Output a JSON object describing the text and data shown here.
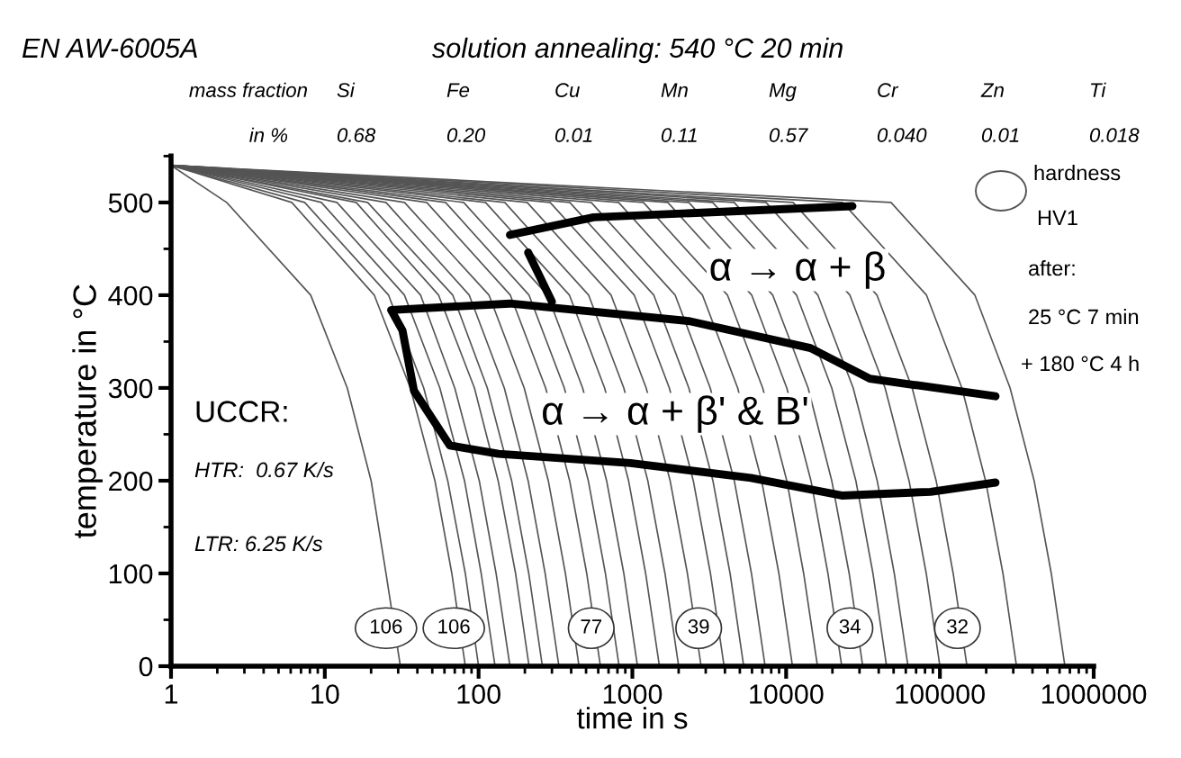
{
  "chart_data": {
    "type": "line",
    "title": "EN AW-6005A",
    "subtitle": "solution annealing: 540 °C 20 min",
    "xlabel": "time in s",
    "ylabel": "temperature in °C",
    "log": "x",
    "xlim": [
      1,
      1000000
    ],
    "xticks": [
      1,
      10,
      100,
      1000,
      10000,
      100000,
      1000000
    ],
    "ylim": [
      0,
      550
    ],
    "yticks": [
      0,
      100,
      200,
      300,
      400,
      500
    ],
    "grid": false,
    "legend": false,
    "series": [
      {
        "color": "#555555",
        "x": [
          1,
          2.3,
          8.1,
          14,
          20,
          25,
          31
        ],
        "values": [
          540,
          500,
          400,
          300,
          200,
          100,
          0
        ]
      },
      {
        "type": "line",
        "color": "#555555",
        "x": [
          1,
          6.1,
          21,
          36,
          52,
          67,
          82
        ],
        "values": [
          540,
          500,
          400,
          300,
          200,
          100,
          0
        ]
      },
      {
        "type": "line",
        "color": "#555555",
        "x": [
          1,
          7.4,
          26,
          44,
          63,
          82,
          100
        ],
        "values": [
          540,
          500,
          400,
          300,
          200,
          100,
          0
        ]
      },
      {
        "type": "line",
        "color": "#555555",
        "x": [
          1,
          9.5,
          33,
          56,
          81,
          104,
          128
        ],
        "values": [
          540,
          500,
          400,
          300,
          200,
          100,
          0
        ]
      },
      {
        "type": "line",
        "color": "#555555",
        "x": [
          1,
          12,
          42,
          70,
          101,
          130,
          160
        ],
        "values": [
          540,
          500,
          400,
          300,
          200,
          100,
          0
        ]
      },
      {
        "type": "line",
        "color": "#555555",
        "x": [
          1,
          16,
          55,
          94,
          134,
          174,
          213
        ],
        "values": [
          540,
          500,
          400,
          300,
          200,
          100,
          0
        ]
      },
      {
        "type": "line",
        "color": "#555555",
        "x": [
          1,
          19,
          68,
          114,
          164,
          212,
          260
        ],
        "values": [
          540,
          500,
          400,
          300,
          200,
          100,
          0
        ]
      },
      {
        "type": "line",
        "color": "#555555",
        "x": [
          1,
          25,
          87,
          147,
          210,
          271,
          333
        ],
        "values": [
          540,
          500,
          400,
          300,
          200,
          100,
          0
        ]
      },
      {
        "type": "line",
        "color": "#555555",
        "x": [
          1,
          33,
          117,
          198,
          284,
          367,
          450
        ],
        "values": [
          540,
          500,
          400,
          300,
          200,
          100,
          0
        ]
      },
      {
        "type": "line",
        "color": "#555555",
        "x": [
          1,
          46,
          161,
          273,
          391,
          505,
          620
        ],
        "values": [
          540,
          500,
          400,
          300,
          200,
          100,
          0
        ]
      },
      {
        "type": "line",
        "color": "#555555",
        "x": [
          1,
          61,
          213,
          361,
          517,
          668,
          820
        ],
        "values": [
          540,
          500,
          400,
          300,
          200,
          100,
          0
        ]
      },
      {
        "type": "line",
        "color": "#555555",
        "x": [
          1,
          80,
          281,
          475,
          680,
          880,
          1080
        ],
        "values": [
          540,
          500,
          400,
          300,
          200,
          100,
          0
        ]
      },
      {
        "type": "line",
        "color": "#555555",
        "x": [
          1,
          111,
          390,
          660,
          945,
          1220,
          1500
        ],
        "values": [
          540,
          500,
          400,
          300,
          200,
          100,
          0
        ]
      },
      {
        "type": "line",
        "color": "#555555",
        "x": [
          1,
          148,
          520,
          880,
          1260,
          1630,
          2000
        ],
        "values": [
          540,
          500,
          400,
          300,
          200,
          100,
          0
        ]
      },
      {
        "type": "line",
        "color": "#555555",
        "x": [
          1,
          207,
          728,
          1230,
          1760,
          2280,
          2800
        ],
        "values": [
          540,
          500,
          400,
          300,
          200,
          100,
          0
        ]
      },
      {
        "type": "line",
        "color": "#555555",
        "x": [
          1,
          292,
          1030,
          1740,
          2490,
          3220,
          3950
        ],
        "values": [
          540,
          500,
          400,
          300,
          200,
          100,
          0
        ]
      },
      {
        "type": "line",
        "color": "#555555",
        "x": [
          1,
          392,
          1380,
          2330,
          3340,
          4320,
          5300
        ],
        "values": [
          540,
          500,
          400,
          300,
          200,
          100,
          0
        ]
      },
      {
        "type": "line",
        "color": "#555555",
        "x": [
          1,
          540,
          1900,
          3210,
          4600,
          5950,
          7300
        ],
        "values": [
          540,
          500,
          400,
          300,
          200,
          100,
          0
        ]
      },
      {
        "type": "line",
        "color": "#555555",
        "x": [
          1,
          814,
          2860,
          4840,
          6930,
          8970,
          11000
        ],
        "values": [
          540,
          500,
          400,
          300,
          200,
          100,
          0
        ]
      },
      {
        "type": "line",
        "color": "#555555",
        "x": [
          1,
          1180,
          4160,
          7040,
          10100,
          13000,
          16000
        ],
        "values": [
          540,
          500,
          400,
          300,
          200,
          100,
          0
        ]
      },
      {
        "type": "line",
        "color": "#555555",
        "x": [
          1,
          1700,
          5980,
          10100,
          14500,
          18700,
          23000
        ],
        "values": [
          540,
          500,
          400,
          300,
          200,
          100,
          0
        ]
      },
      {
        "type": "line",
        "color": "#555555",
        "x": [
          1,
          2330,
          8190,
          13900,
          19800,
          25700,
          31500
        ],
        "values": [
          540,
          500,
          400,
          300,
          200,
          100,
          0
        ]
      },
      {
        "type": "line",
        "color": "#555555",
        "x": [
          1,
          3330,
          11700,
          19800,
          28400,
          36700,
          45000
        ],
        "values": [
          540,
          500,
          400,
          300,
          200,
          100,
          0
        ]
      },
      {
        "type": "line",
        "color": "#555555",
        "x": [
          1,
          4590,
          16100,
          27300,
          39100,
          50500,
          62000
        ],
        "values": [
          540,
          500,
          400,
          300,
          200,
          100,
          0
        ]
      },
      {
        "type": "line",
        "color": "#555555",
        "x": [
          1,
          7400,
          26000,
          44000,
          63000,
          81500,
          100000
        ],
        "values": [
          540,
          500,
          400,
          300,
          200,
          100,
          0
        ]
      },
      {
        "type": "line",
        "color": "#555555",
        "x": [
          1,
          11100,
          39000,
          66000,
          94500,
          122000,
          150000
        ],
        "values": [
          540,
          500,
          400,
          300,
          200,
          100,
          0
        ]
      },
      {
        "type": "line",
        "color": "#555555",
        "x": [
          1,
          23300,
          81900,
          139000,
          198000,
          257000,
          315000
        ],
        "values": [
          540,
          500,
          400,
          300,
          200,
          100,
          0
        ]
      },
      {
        "type": "line",
        "color": "#555555",
        "x": [
          1,
          48100,
          169000,
          286000,
          410000,
          530000,
          650000
        ],
        "values": [
          540,
          500,
          400,
          300,
          200,
          100,
          0
        ]
      },
      {
        "type": "line",
        "color": "#000000",
        "x": [
          160,
          560,
          27000
        ],
        "values": [
          465,
          484,
          496
        ]
      },
      {
        "type": "line",
        "color": "#000000",
        "x": [
          210,
          300
        ],
        "values": [
          446,
          393
        ]
      },
      {
        "type": "line",
        "color": "#000000",
        "x": [
          230000,
          35000,
          14400,
          2350,
          160,
          27,
          32,
          38,
          65,
          135,
          970,
          5900,
          23000,
          87000,
          230000
        ],
        "values": [
          291,
          310,
          343,
          372,
          391,
          384,
          362,
          297,
          238,
          229,
          219,
          203,
          184,
          188,
          198
        ]
      }
    ],
    "annotations": [
      "mass fraction",
      "Si",
      "Fe",
      "Cu",
      "Mn",
      "Mg",
      "Cr",
      "Zn",
      "Ti",
      "in %",
      "0.68",
      "0.20",
      "0.01",
      "0.11",
      "0.57",
      "0.040",
      "0.01",
      "0.018",
      "UCCR:",
      "HTR:  0.67 K/s",
      "LTR: 6.25 K/s",
      "α → α + β",
      "α → α + β' & B'",
      "hardness",
      "HV1",
      "after:",
      "25 °C 7 min",
      "+ 180 °C 4 h",
      {
        "text": "106",
        "x": 25,
        "y": 41
      },
      {
        "text": "106",
        "x": 69,
        "y": 41
      },
      {
        "text": "77",
        "x": 540,
        "y": 41
      },
      {
        "text": "39",
        "x": 2700,
        "y": 41
      },
      {
        "text": "34",
        "x": 26000,
        "y": 41
      },
      {
        "text": "32",
        "x": 130000,
        "y": 41
      }
    ]
  }
}
